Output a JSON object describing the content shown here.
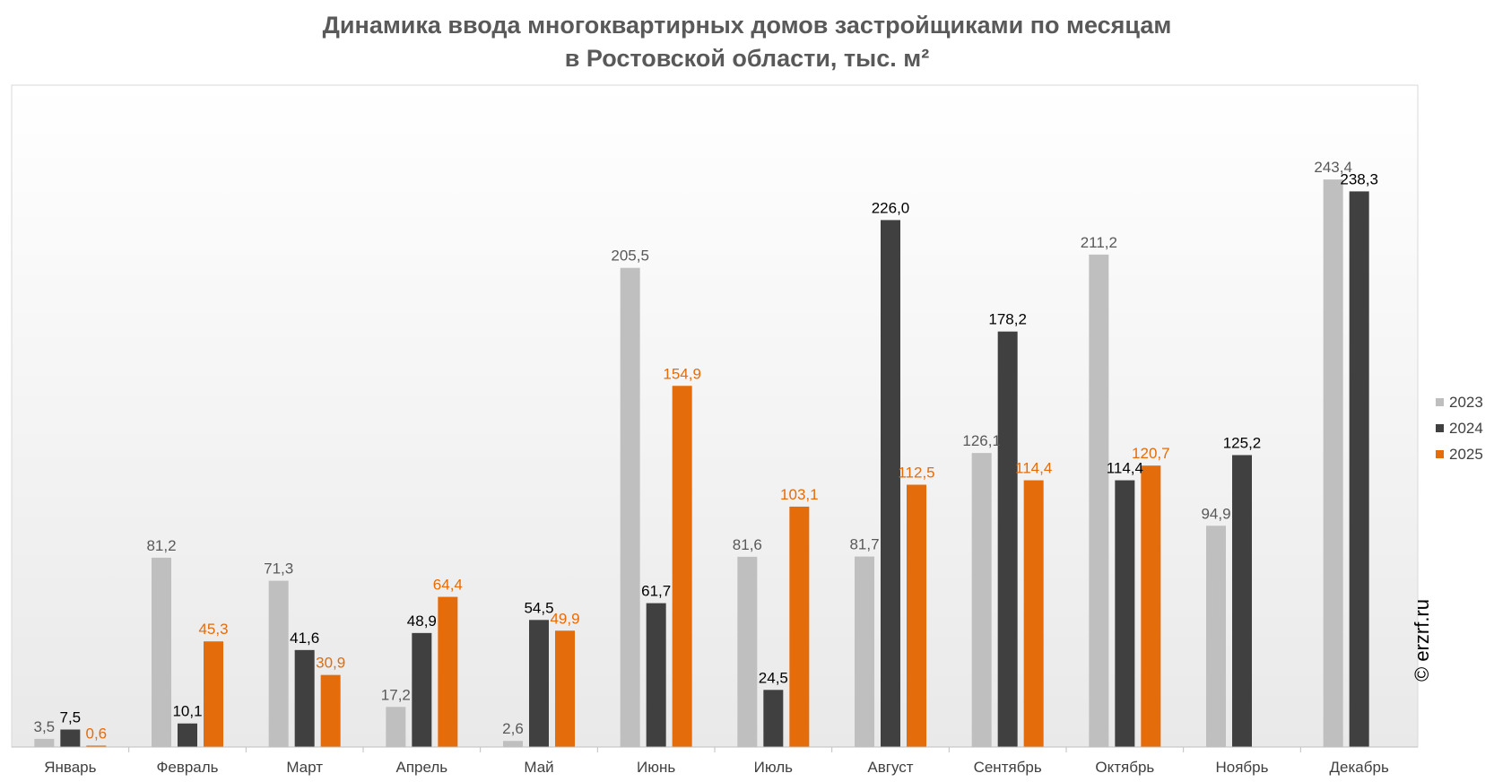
{
  "title": {
    "line1": "Динамика ввода многоквартирных домов застройщиками по месяцам",
    "line2": "в Ростовской области, тыс. м²"
  },
  "copyright": "© erzrf.ru",
  "colors": {
    "s2023": "#bfbfbf",
    "s2024": "#404040",
    "s2025": "#e46c0a",
    "label2023": "#595959",
    "label2024": "#000000",
    "label2025": "#e46c0a"
  },
  "chart_data": {
    "type": "bar",
    "title": "Динамика ввода многоквартирных домов застройщиками по месяцам в Ростовской области, тыс. м²",
    "categories": [
      "Январь",
      "Февраль",
      "Март",
      "Апрель",
      "Май",
      "Июнь",
      "Июль",
      "Август",
      "Сентябрь",
      "Октябрь",
      "Ноябрь",
      "Декабрь"
    ],
    "series": [
      {
        "name": "2023",
        "values": [
          3.5,
          81.2,
          71.3,
          17.2,
          2.6,
          205.5,
          81.6,
          81.7,
          126.1,
          211.2,
          94.9,
          243.4
        ],
        "labels": [
          "3,5",
          "81,2",
          "71,3",
          "17,2",
          "2,6",
          "205,5",
          "81,6",
          "81,7",
          "126,1",
          "211,2",
          "94,9",
          "243,4"
        ]
      },
      {
        "name": "2024",
        "values": [
          7.5,
          10.1,
          41.6,
          48.9,
          54.5,
          61.7,
          24.5,
          226.0,
          178.2,
          114.4,
          125.2,
          238.3
        ],
        "labels": [
          "7,5",
          "10,1",
          "41,6",
          "48,9",
          "54,5",
          "61,7",
          "24,5",
          "226,0",
          "178,2",
          "114,4",
          "125,2",
          "238,3"
        ]
      },
      {
        "name": "2025",
        "values": [
          0.6,
          45.3,
          30.9,
          64.4,
          49.9,
          154.9,
          103.1,
          112.5,
          114.4,
          120.7,
          null,
          null
        ],
        "labels": [
          "0,6",
          "45,3",
          "30,9",
          "64,4",
          "49,9",
          "154,9",
          "103,1",
          "112,5",
          "114,4",
          "120,7",
          null,
          null
        ]
      }
    ],
    "xlabel": "",
    "ylabel": "",
    "ylim": [
      0,
      280
    ],
    "grid": false,
    "legend": "right"
  }
}
